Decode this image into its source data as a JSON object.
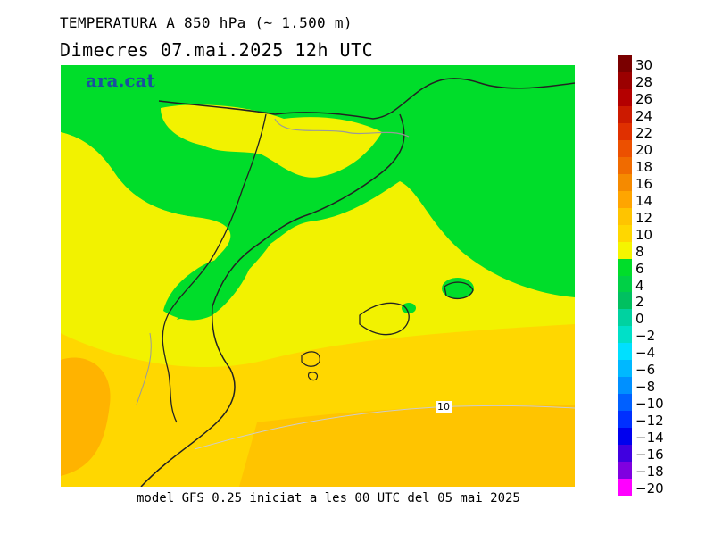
{
  "title": "TEMPERATURA A 850 hPa (~ 1.500 m)",
  "subtitle": "Dimecres   07.mai.2025  12h  UTC",
  "footer": "model GFS 0.25 iniciat a les 00 UTC del 05 mai 2025",
  "brand": "ara.cat",
  "contour_label": "10",
  "colors": {
    "green": "#00dd2a",
    "lightgreen": "#33e33a",
    "yellow": "#f2f200",
    "lightyellow": "#f7f233",
    "gold": "#ffd700",
    "orange": "#ffb300",
    "coast": "#222222",
    "border": "#888888"
  },
  "legend": {
    "labels": [
      "30",
      "28",
      "26",
      "24",
      "22",
      "20",
      "18",
      "16",
      "14",
      "12",
      "10",
      "8",
      "6",
      "4",
      "2",
      "0",
      "−2",
      "−4",
      "−6",
      "−8",
      "−10",
      "−12",
      "−14",
      "−16",
      "−18",
      "−20"
    ],
    "colors": [
      "#7a0000",
      "#9b0000",
      "#b40000",
      "#cc1a00",
      "#e03000",
      "#ec5000",
      "#f06b00",
      "#f58a00",
      "#ffa500",
      "#ffc400",
      "#ffd700",
      "#f5f500",
      "#00dd2a",
      "#00d046",
      "#00c060",
      "#00d2a0",
      "#00e0c8",
      "#00e0ff",
      "#00b8ff",
      "#0090ff",
      "#0060ff",
      "#0030ff",
      "#0000ee",
      "#4000e0",
      "#8000e0",
      "#ff00ff"
    ]
  }
}
